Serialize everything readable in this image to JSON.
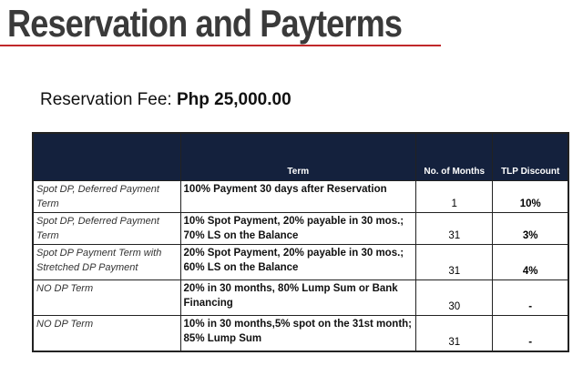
{
  "title": "Reservation and Payterms",
  "reservation_fee": {
    "label": "Reservation Fee:",
    "value": "Php 25,000.00"
  },
  "table": {
    "headers": [
      "",
      "Term",
      "No. of Months",
      "TLP Discount"
    ],
    "rows": [
      {
        "type": "Spot DP, Deferred Payment Term",
        "term": "100% Payment 30 days after Reservation",
        "months": "1",
        "discount": "10%"
      },
      {
        "type": "Spot DP, Deferred Payment Term",
        "term": "10% Spot Payment, 20% payable in 30 mos.; 70% LS on the Balance",
        "months": "31",
        "discount": "3%"
      },
      {
        "type": "Spot DP Payment Term with Stretched DP Payment",
        "term": "20% Spot Payment, 20% payable in 30 mos.; 60% LS on the Balance",
        "months": "31",
        "discount": "4%"
      },
      {
        "type": "NO DP Term",
        "term": "20% in 30 months, 80% Lump Sum or Bank Financing",
        "months": "30",
        "discount": "-"
      },
      {
        "type": "NO DP Term",
        "term": "10% in 30 months,5% spot on the 31st month; 85% Lump Sum",
        "months": "31",
        "discount": "-"
      }
    ]
  },
  "colors": {
    "title": "#3a3a3a",
    "rule": "#c0282a",
    "header_bg": "#14213d"
  }
}
